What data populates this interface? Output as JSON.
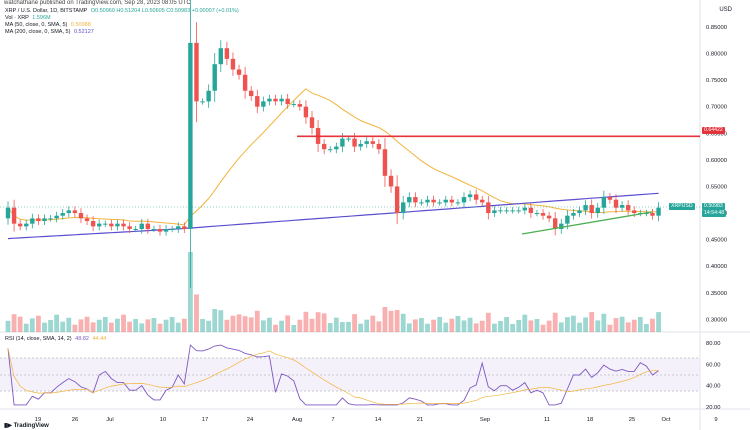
{
  "header": {
    "topline": "watchathane published on TradingView.com, Sep 28, 2023 08:05 UTC",
    "symbol_line": "XRP / U.S. Dollar, 1D, BITSTAMP",
    "ohlc": "O0.50960  H0.51204  L0.50605  C0.50983  +0.00007 (+0.01%)",
    "vol": "Vol · XRP",
    "vol_value": "1.596M",
    "ma1": "MA (50, close, 0, SMA, 5)",
    "ma1_value": "0.50988",
    "ma2": "MA (200, close, 0, SMA, 5)",
    "ma2_value": "0.52127",
    "currency": "USD"
  },
  "rsi": {
    "label": "RSI (14, close, SMA, 14, 2)",
    "value1": "48.82",
    "value2": "44.44"
  },
  "price_axis": [
    "0.85000",
    "0.80000",
    "0.75000",
    "0.70000",
    "0.65000",
    "0.60000",
    "0.55000",
    "0.50000",
    "0.45000",
    "0.40000",
    "0.35000",
    "0.30000"
  ],
  "rsi_axis": [
    "80.00",
    "60.00",
    "40.00",
    "20.00"
  ],
  "x_axis": [
    "19",
    "26",
    "Jul",
    "10",
    "17",
    "24",
    "Aug",
    "7",
    "14",
    "21",
    "Sep",
    "11",
    "18",
    "25",
    "Oct",
    "9"
  ],
  "price_badges": {
    "resistance": "0.64422",
    "current_label": "XRPUSD",
    "current": "0.50983",
    "countdown": "14:54:48"
  },
  "colors": {
    "up": "#26a69a",
    "down": "#ef5350",
    "ma50": "#f2b43c",
    "ma200": "#5b4fcf",
    "resistance": "#e5333b",
    "support": "#4caf50",
    "rsi": "#7e57c2"
  },
  "brand": "TradingView",
  "chart_data": {
    "type": "candlestick",
    "title": "XRP / U.S. Dollar, 1D, BITSTAMP",
    "ylim": [
      0.28,
      0.88
    ],
    "x": [
      "Jun 13",
      "Jun 14",
      "Jun 15",
      "Jun 16",
      "Jun 17",
      "Jun 18",
      "Jun 19",
      "Jun 20",
      "Jun 21",
      "Jun 22",
      "Jun 23",
      "Jun 24",
      "Jun 25",
      "Jun 26",
      "Jun 27",
      "Jun 28",
      "Jun 29",
      "Jun 30",
      "Jul 1",
      "Jul 2",
      "Jul 3",
      "Jul 4",
      "Jul 5",
      "Jul 6",
      "Jul 7",
      "Jul 8",
      "Jul 9",
      "Jul 10",
      "Jul 11",
      "Jul 12",
      "Jul 13",
      "Jul 14",
      "Jul 15",
      "Jul 16",
      "Jul 17",
      "Jul 18",
      "Jul 19",
      "Jul 20",
      "Jul 21",
      "Jul 22",
      "Jul 23",
      "Jul 24",
      "Jul 25",
      "Jul 26",
      "Jul 27",
      "Jul 28",
      "Jul 29",
      "Jul 30",
      "Jul 31",
      "Aug 1",
      "Aug 2",
      "Aug 3",
      "Aug 4",
      "Aug 5",
      "Aug 6",
      "Aug 7",
      "Aug 8",
      "Aug 9",
      "Aug 10",
      "Aug 11",
      "Aug 12",
      "Aug 13",
      "Aug 14",
      "Aug 15",
      "Aug 16",
      "Aug 17",
      "Aug 18",
      "Aug 19",
      "Aug 20",
      "Aug 21",
      "Aug 22",
      "Aug 23",
      "Aug 24",
      "Aug 25",
      "Aug 26",
      "Aug 27",
      "Aug 28",
      "Aug 29",
      "Aug 30",
      "Aug 31",
      "Sep 1",
      "Sep 2",
      "Sep 3",
      "Sep 4",
      "Sep 5",
      "Sep 6",
      "Sep 7",
      "Sep 8",
      "Sep 9",
      "Sep 10",
      "Sep 11",
      "Sep 12",
      "Sep 13",
      "Sep 14",
      "Sep 15",
      "Sep 16",
      "Sep 17",
      "Sep 18",
      "Sep 19",
      "Sep 20",
      "Sep 21",
      "Sep 22",
      "Sep 23",
      "Sep 24",
      "Sep 25",
      "Sep 26",
      "Sep 27",
      "Sep 28"
    ],
    "close": [
      0.51,
      0.48,
      0.475,
      0.48,
      0.49,
      0.485,
      0.49,
      0.49,
      0.495,
      0.5,
      0.505,
      0.5,
      0.49,
      0.485,
      0.475,
      0.48,
      0.48,
      0.475,
      0.48,
      0.475,
      0.47,
      0.47,
      0.48,
      0.47,
      0.47,
      0.465,
      0.47,
      0.47,
      0.475,
      0.47,
      0.82,
      0.71,
      0.71,
      0.73,
      0.78,
      0.81,
      0.79,
      0.77,
      0.76,
      0.73,
      0.72,
      0.7,
      0.71,
      0.715,
      0.71,
      0.715,
      0.705,
      0.705,
      0.7,
      0.68,
      0.66,
      0.63,
      0.62,
      0.62,
      0.625,
      0.64,
      0.64,
      0.625,
      0.63,
      0.635,
      0.63,
      0.62,
      0.57,
      0.55,
      0.5,
      0.52,
      0.53,
      0.52,
      0.52,
      0.525,
      0.52,
      0.52,
      0.525,
      0.52,
      0.52,
      0.53,
      0.535,
      0.525,
      0.52,
      0.5,
      0.505,
      0.505,
      0.505,
      0.505,
      0.505,
      0.51,
      0.5,
      0.5,
      0.495,
      0.49,
      0.47,
      0.48,
      0.495,
      0.5,
      0.505,
      0.515,
      0.5,
      0.51,
      0.53,
      0.525,
      0.51,
      0.515,
      0.505,
      0.5,
      0.5,
      0.5,
      0.495,
      0.51
    ],
    "ma50": {
      "name": "MA (50, close, 0, SMA, 5)",
      "last": 0.50988
    },
    "ma200": {
      "name": "MA (200, close, 0, SMA, 5)",
      "last": 0.52127
    },
    "resistance": 0.64422,
    "rsi_ylim": [
      20,
      80
    ]
  }
}
